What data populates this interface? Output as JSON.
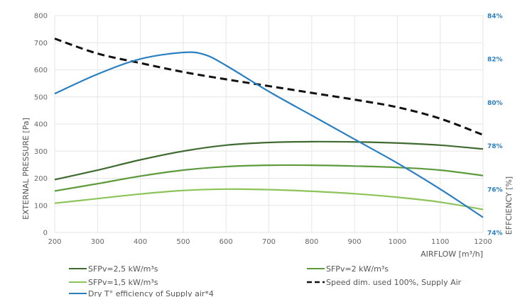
{
  "chart_data": {
    "type": "line",
    "xlabel": "AIRFLOW [m³/h]",
    "ylabel_left": "EXTERNAL PRESSURE [Pa]",
    "ylabel_right": "EFFCIENCY [%]",
    "x_ticks": [
      200,
      300,
      400,
      500,
      600,
      700,
      800,
      900,
      1000,
      1100,
      1200
    ],
    "xlim": [
      200,
      1200
    ],
    "ylim_left": [
      0,
      800
    ],
    "y_left_ticks": [
      0,
      100,
      200,
      300,
      400,
      500,
      600,
      700,
      800
    ],
    "ylim_right": [
      74,
      84
    ],
    "y_right_ticks": [
      "74%",
      "76%",
      "78%",
      "80%",
      "82%",
      "84%"
    ],
    "grid": true,
    "legend_placement": "bottom",
    "series": [
      {
        "name": "SFPv=2,5 kW/m³s",
        "axis": "left",
        "color": "#3f6b30",
        "style": "solid",
        "x": [
          200,
          300,
          400,
          500,
          600,
          700,
          800,
          900,
          1000,
          1100,
          1200
        ],
        "y": [
          195,
          230,
          268,
          300,
          322,
          332,
          335,
          334,
          330,
          322,
          308
        ]
      },
      {
        "name": "SFPv=2 kW/m³s",
        "axis": "left",
        "color": "#5c9a3c",
        "style": "solid",
        "x": [
          200,
          300,
          400,
          500,
          600,
          700,
          800,
          900,
          1000,
          1100,
          1200
        ],
        "y": [
          153,
          180,
          208,
          230,
          243,
          248,
          248,
          245,
          240,
          230,
          210
        ]
      },
      {
        "name": "SFPv=1,5 kW/m³s",
        "axis": "left",
        "color": "#8cc45a",
        "style": "solid",
        "x": [
          200,
          300,
          400,
          500,
          600,
          700,
          800,
          900,
          1000,
          1100,
          1200
        ],
        "y": [
          108,
          125,
          142,
          155,
          160,
          158,
          152,
          143,
          130,
          112,
          85
        ]
      },
      {
        "name": "Speed dim. used 100%, Supply Air",
        "axis": "left",
        "color": "#111111",
        "style": "dashed",
        "x": [
          200,
          300,
          400,
          500,
          600,
          700,
          800,
          900,
          1000,
          1100,
          1200
        ],
        "y": [
          715,
          660,
          625,
          592,
          565,
          540,
          515,
          490,
          462,
          420,
          360
        ]
      },
      {
        "name": "Dry T° efficiency of Supply air*4",
        "axis": "right",
        "color": "#2a7fc1",
        "style": "solid",
        "x": [
          200,
          300,
          400,
          500,
          550,
          600,
          700,
          800,
          900,
          1000,
          1100,
          1200
        ],
        "y": [
          80.4,
          81.3,
          82.0,
          82.3,
          82.2,
          81.7,
          80.5,
          79.4,
          78.3,
          77.2,
          76.0,
          74.7
        ]
      }
    ]
  }
}
